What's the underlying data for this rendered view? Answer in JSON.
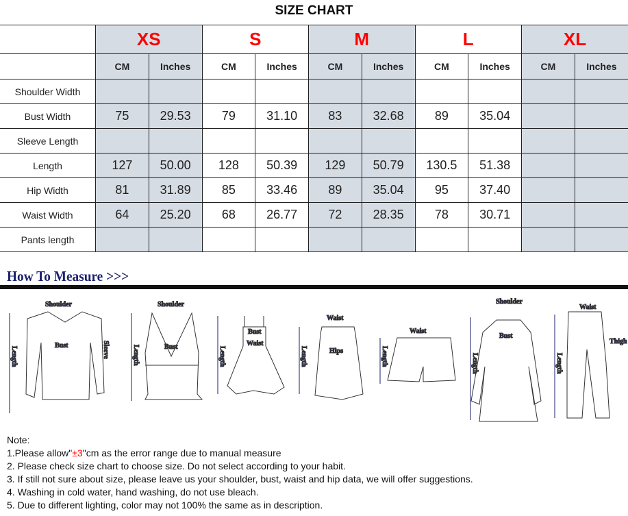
{
  "title": "SIZE CHART",
  "sizes": [
    "XS",
    "S",
    "M",
    "L",
    "XL"
  ],
  "units": {
    "cm": "CM",
    "in": "Inches"
  },
  "rows": [
    {
      "label": "Shoulder Width",
      "values": [
        "",
        "",
        "",
        "",
        "",
        "",
        "",
        "",
        "",
        ""
      ]
    },
    {
      "label": "Bust Width",
      "values": [
        "75",
        "29.53",
        "79",
        "31.10",
        "83",
        "32.68",
        "89",
        "35.04",
        "",
        ""
      ]
    },
    {
      "label": "Sleeve Length",
      "values": [
        "",
        "",
        "",
        "",
        "",
        "",
        "",
        "",
        "",
        ""
      ]
    },
    {
      "label": "Length",
      "values": [
        "127",
        "50.00",
        "128",
        "50.39",
        "129",
        "50.79",
        "130.5",
        "51.38",
        "",
        ""
      ]
    },
    {
      "label": "Hip Width",
      "values": [
        "81",
        "31.89",
        "85",
        "33.46",
        "89",
        "35.04",
        "95",
        "37.40",
        "",
        ""
      ]
    },
    {
      "label": "Waist Width",
      "values": [
        "64",
        "25.20",
        "68",
        "26.77",
        "72",
        "28.35",
        "78",
        "30.71",
        "",
        ""
      ]
    },
    {
      "label": "Pants length",
      "values": [
        "",
        "",
        "",
        "",
        "",
        "",
        "",
        "",
        "",
        ""
      ]
    }
  ],
  "colors": {
    "size_label": "#ff0000",
    "shaded_column": "#d6dce4",
    "measure_text": "#1a1f6e"
  },
  "how_to_measure": {
    "heading": "How To Measure >>>",
    "labels": {
      "shoulder": "Shoulder",
      "bust": "Bust",
      "sleeve": "Sleeve",
      "length": "Length",
      "waist": "Waist",
      "hips": "Hips",
      "thigh": "Thigh"
    }
  },
  "notes": {
    "heading": "Note:",
    "n1_pre": "1.Please allow\"",
    "n1_red": "±3",
    "n1_post": "\"cm as the error range due to manual measure",
    "n2": "2. Please check size chart to choose size. Do not select according to your habit.",
    "n3": "3. If still not sure about size, please leave us your shoulder, bust, waist and hip data, we will offer suggestions.",
    "n4": "4. Washing in cold water, hand washing, do not use bleach.",
    "n5": "5. Due to different lighting, color may not 100% the same as in description."
  }
}
